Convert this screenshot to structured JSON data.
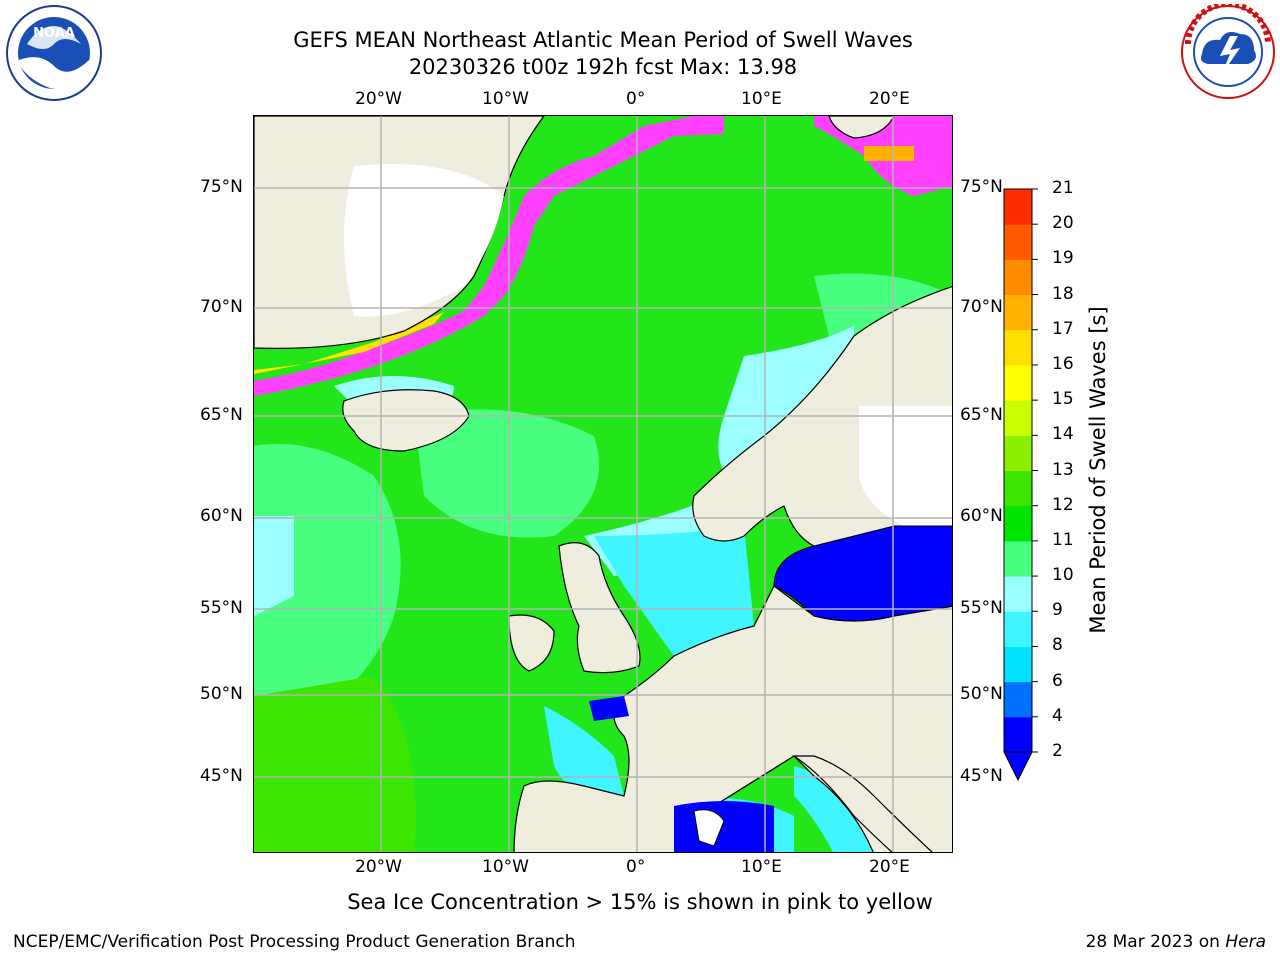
{
  "title_line1": "GEFS MEAN Northeast Atlantic Mean Period of Swell Waves",
  "title_line2": "20230326 t00z 192h fcst   Max: 13.98",
  "lon_ticks": [
    "20°W",
    "10°W",
    "0°",
    "10°E",
    "20°E"
  ],
  "lat_ticks": [
    "75°N",
    "70°N",
    "65°N",
    "60°N",
    "55°N",
    "50°N",
    "45°N"
  ],
  "colorbar": {
    "label": "Mean Period of Swell Waves [s]",
    "ticks": [
      "2",
      "4",
      "6",
      "8",
      "9",
      "10",
      "11",
      "12",
      "13",
      "14",
      "15",
      "16",
      "17",
      "18",
      "19",
      "20",
      "21"
    ],
    "colors": [
      "#0000ff",
      "#0070ff",
      "#00e1ff",
      "#40f5ff",
      "#9bffff",
      "#48ff7f",
      "#00e600",
      "#3ce600",
      "#8cef00",
      "#c9ff00",
      "#ffff00",
      "#ffe000",
      "#ffb300",
      "#ff8c00",
      "#ff5a00",
      "#ff2d00"
    ]
  },
  "note": "Sea Ice Concentration > 15% is shown in pink to yellow",
  "footer_left": "NCEP/EMC/Verification Post Processing Product Generation Branch",
  "footer_date": "28 Mar 2023 on",
  "footer_host": "Hera",
  "logo_left": "NOAA",
  "logo_left_ring": "NATIONAL OCEANIC AND ATMOSPHERIC ADMINISTRATION · U.S. DEPARTMENT OF COMMERCE",
  "logo_right_ring": "NATIONAL WEATHER SERVICE",
  "colors": {
    "land": "#efedde",
    "ocean_main": "#22e61a",
    "swell_light": "#9bffff",
    "baltic": "#0000ff",
    "ice_pink": "#ff40ff",
    "grid": "#b4b4b4"
  }
}
